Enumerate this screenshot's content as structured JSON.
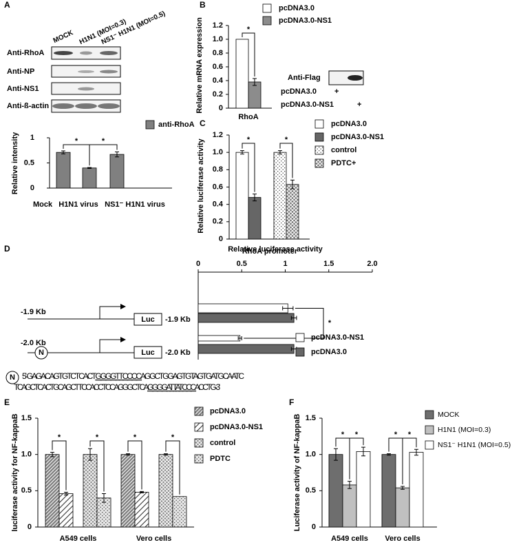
{
  "panel_labels": [
    "A",
    "B",
    "C",
    "D",
    "E",
    "F"
  ],
  "blot_a": {
    "lanes": [
      "MOCK",
      "H1N1 (MOI=0.3)",
      "NS1⁻ H1N1 (MOI=0.5)"
    ],
    "rows": [
      "Anti-RhoA",
      "Anti-NP",
      "Anti-NS1",
      "Anti-ß-actin"
    ]
  },
  "blot_b": {
    "label": "Anti-Flag",
    "rows": [
      {
        "name": "pcDNA3.0",
        "mark": "+"
      },
      {
        "name": "pcDNA3.0-NS1",
        "mark": "+"
      }
    ]
  },
  "diagram_d": {
    "constructs": [
      {
        "label": "-1.9 Kb",
        "reporter": "Luc"
      },
      {
        "label": "-2.0 Kb",
        "element": "N",
        "reporter": "Luc"
      }
    ],
    "sequence": {
      "element": "N",
      "lines": [
        {
          "before": "5'-GAGACAGTGTCTCACT",
          "site": "GGGGTTCCCC",
          "after": "AGGCTGGAGTGTAGTGATGCAATC"
        },
        {
          "before": "TCAGCTCACTGCAGCTTCCACCTCCAGGGCTCA",
          "site": "GGGGATTATCCC",
          "after": "ACCTG-3'"
        }
      ]
    }
  },
  "chart_data": [
    {
      "type": "bar",
      "y_label": "Relative intensity",
      "categories": [
        "Mock",
        "H1N1 virus",
        "NS1⁻ H1N1 virus"
      ],
      "series": [
        {
          "name": "anti-RhoA",
          "color": "#808080",
          "values": [
            0.71,
            0.4,
            0.67
          ],
          "errors": [
            0.03,
            0.01,
            0.05
          ]
        }
      ],
      "ylim": [
        0,
        1
      ],
      "yticks": [
        0,
        0.5,
        1
      ],
      "annotations": [
        "*",
        "*"
      ],
      "grid": false
    },
    {
      "type": "bar",
      "y_label": "Relative mRNA expression",
      "categories": [
        "RhoA"
      ],
      "series": [
        {
          "name": "pcDNA3.0",
          "color": "#ffffff",
          "values": [
            1.0
          ],
          "errors": [
            null
          ]
        },
        {
          "name": "pcDNA3.0-NS1",
          "color": "#8c8c8c",
          "values": [
            0.38
          ],
          "errors": [
            0.05
          ]
        }
      ],
      "ylim": [
        0,
        1.2
      ],
      "yticks": [
        0,
        0.2,
        0.4,
        0.6,
        0.8,
        {
          "value": 1,
          "label": "1.0"
        },
        1.2
      ],
      "annotations": [
        "*"
      ],
      "grid": false
    },
    {
      "type": "bar",
      "y_label": "Relative luciferase activity",
      "x_label": "RhoA promoter",
      "categories": [
        null,
        null
      ],
      "series": [
        {
          "name": "pcDNA3.0",
          "color": "#ffffff",
          "values": [
            1.0,
            null
          ],
          "errors": [
            0.02,
            null
          ]
        },
        {
          "name": "pcDNA3.0-NS1",
          "color": "#666666",
          "values": [
            0.48,
            null
          ],
          "errors": [
            0.04,
            null
          ]
        },
        {
          "name": "control",
          "color": "#ffffff",
          "pattern": "dots",
          "values": [
            null,
            1.0
          ],
          "errors": [
            null,
            0.02
          ]
        },
        {
          "name": "PDTC+",
          "color": "#707070",
          "pattern": "crosshatch",
          "values": [
            null,
            0.63
          ],
          "errors": [
            null,
            0.05
          ]
        }
      ],
      "ylim": [
        0,
        1.2
      ],
      "yticks": [
        0,
        0.2,
        0.4,
        0.6,
        0.8,
        {
          "value": 1,
          "label": "1.0"
        },
        1.2
      ],
      "annotations": [
        "*",
        "*"
      ],
      "grid": false
    },
    {
      "type": "hbar",
      "title": "Relative luciferase activity",
      "categories": [
        "-1.9 Kb",
        "-2.0 Kb"
      ],
      "series": [
        {
          "name": "pcDNA3.0-NS1",
          "color": "#ffffff",
          "values": [
            1.03,
            0.48
          ],
          "errors": [
            0.06,
            0.02
          ]
        },
        {
          "name": "pcDNA3.0",
          "color": "#666666",
          "values": [
            1.1,
            1.1
          ],
          "errors": [
            0.03,
            0.03
          ]
        }
      ],
      "xlim": [
        0,
        2
      ],
      "xticks": [
        0,
        0.5,
        1,
        1.5,
        {
          "value": 2,
          "label": "2.0"
        }
      ],
      "annotations": [
        "*"
      ],
      "grid": false
    },
    {
      "type": "bar",
      "y_label": "luciferase activity for NF-kappaB",
      "categories": [
        "A549 cells",
        "Vero cells"
      ],
      "series": [
        {
          "name": "pcDNA3.0",
          "color": "#7f7f7f",
          "pattern": "dense-diagonal",
          "values": [
            1.0,
            1.0
          ],
          "errors": [
            0.03,
            0.01
          ]
        },
        {
          "name": "pcDNA3.0-NS1",
          "color": "#ffffff",
          "pattern": "sparse-diagonal",
          "values": [
            0.46,
            0.48
          ],
          "errors": [
            0.02,
            0.01
          ]
        },
        {
          "name": "control",
          "color": "#8a8a8a",
          "pattern": "crosshatch",
          "values": [
            1.0,
            1.0
          ],
          "errors": [
            0.08,
            0.01
          ]
        },
        {
          "name": "PDTC",
          "color": "#e6e6e6",
          "pattern": "dots",
          "values": [
            0.4,
            0.42
          ],
          "errors": [
            0.06,
            null
          ]
        }
      ],
      "ylim": [
        0,
        1.5
      ],
      "yticks": [
        0,
        0.5,
        {
          "value": 1,
          "label": "1.0"
        },
        1.5
      ],
      "annotations": [
        "*",
        "*",
        "*",
        "*"
      ],
      "grid": false
    },
    {
      "type": "bar",
      "y_label": "Luciferase activity of NF-kappaB",
      "categories": [
        "A549 cells",
        "Vero cells"
      ],
      "series": [
        {
          "name": "MOCK",
          "color": "#6e6e6e",
          "values": [
            1.0,
            1.0
          ],
          "errors": [
            0.08,
            0.01
          ]
        },
        {
          "name": "H1N1 (MOI=0.3)",
          "color": "#c0c0c0",
          "values": [
            0.58,
            0.54
          ],
          "errors": [
            0.05,
            0.02
          ]
        },
        {
          "name": "NS1⁻ H1N1 (MOI=0.5)",
          "color": "#ffffff",
          "values": [
            1.04,
            1.03
          ],
          "errors": [
            0.06,
            0.04
          ]
        }
      ],
      "ylim": [
        0,
        1.5
      ],
      "yticks": [
        0,
        0.5,
        {
          "value": 1,
          "label": "1.0"
        },
        1.5
      ],
      "annotations": [
        "*",
        "*",
        "*",
        "*"
      ],
      "grid": false
    }
  ]
}
